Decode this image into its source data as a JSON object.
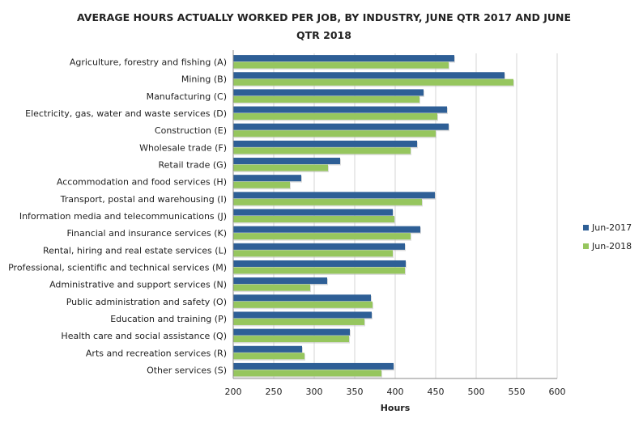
{
  "chart_data": {
    "type": "bar",
    "orientation": "horizontal",
    "title": "AVERAGE HOURS ACTUALLY WORKED PER JOB, BY INDUSTRY, JUNE QTR 2017 AND JUNE QTR 2018",
    "xlabel": "Hours",
    "ylabel": "",
    "xlim": [
      200,
      600
    ],
    "xticks": [
      "200",
      "250",
      "300",
      "350",
      "400",
      "450",
      "500",
      "550",
      "600"
    ],
    "grid": true,
    "legend_position": "right",
    "categories": [
      "Agriculture, forestry and fishing (A)",
      "Mining (B)",
      "Manufacturing (C)",
      "Electricity, gas, water and waste services (D)",
      "Construction (E)",
      "Wholesale trade (F)",
      "Retail trade (G)",
      "Accommodation and food services (H)",
      "Transport, postal and warehousing (I)",
      "Information media and telecommunications (J)",
      "Financial and insurance services (K)",
      "Rental, hiring and real estate services (L)",
      "Professional, scientific and technical services (M)",
      "Administrative and support services (N)",
      "Public administration and safety (O)",
      "Education and training (P)",
      "Health care and social assistance (Q)",
      "Arts and recreation services (R)",
      "Other services (S)"
    ],
    "series": [
      {
        "name": "Jun-2017",
        "color": "#2e5f96",
        "values": [
          473,
          535,
          435,
          464,
          466,
          427,
          332,
          284,
          449,
          397,
          431,
          412,
          413,
          316,
          370,
          371,
          344,
          285,
          398
        ]
      },
      {
        "name": "Jun-2018",
        "color": "#96c65e",
        "values": [
          466,
          546,
          430,
          452,
          450,
          419,
          317,
          270,
          433,
          399,
          419,
          397,
          412,
          295,
          372,
          362,
          343,
          288,
          383
        ]
      }
    ]
  }
}
